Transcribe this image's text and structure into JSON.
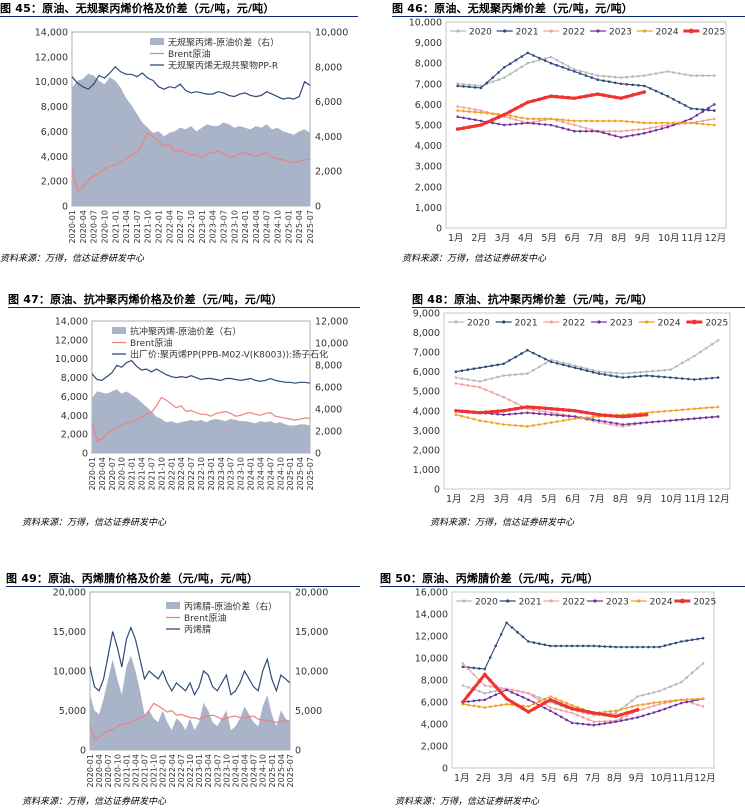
{
  "source_label": "资料来源：万得，信达证券研发中心",
  "panels": [
    {
      "id": "p45",
      "title": "图 45：原油、无规聚丙烯价格及价差（元/吨，元/吨）"
    },
    {
      "id": "p46",
      "title": "图 46：原油、无规聚丙烯价差（元/吨，元/吨）"
    },
    {
      "id": "p47",
      "title": "图 47：原油、抗冲聚丙烯价格及价差（元/吨，元/吨）"
    },
    {
      "id": "p48",
      "title": "图 48：原油、抗冲聚丙烯价差（元/吨，元/吨）"
    },
    {
      "id": "p49",
      "title": "图 49：原油、丙烯腈价格及价差（元/吨，元/吨）"
    },
    {
      "id": "p50",
      "title": "图 50：原油、丙烯腈价差（元/吨，元/吨）"
    }
  ],
  "colors": {
    "spread": "#a9b4c8",
    "brent": "#f08080",
    "product": "#2f4a7a",
    "title_rule": "#0b2a6b"
  },
  "chart_data": [
    {
      "id": "c45",
      "type": "area",
      "x_ticks": [
        "2020-01",
        "2020-04",
        "2020-07",
        "2020-10",
        "2021-01",
        "2021-04",
        "2021-07",
        "2021-10",
        "2022-01",
        "2022-04",
        "2022-07",
        "2022-10",
        "2023-01",
        "2023-04",
        "2023-07",
        "2023-10",
        "2024-01",
        "2024-04",
        "2024-07",
        "2024-10",
        "2025-01",
        "2025-04",
        "2025-07"
      ],
      "ylim_left": [
        0,
        14000
      ],
      "yticks_left": [
        "0",
        "2,000",
        "4,000",
        "6,000",
        "8,000",
        "10,000",
        "12,000",
        "14,000"
      ],
      "ylim_right": [
        0,
        10000
      ],
      "yticks_right": [
        "0",
        "2,000",
        "4,000",
        "6,000",
        "8,000",
        "10,000"
      ],
      "legend": [
        "无规聚丙烯-原油价差（右）",
        "Brent原油",
        "无规聚丙烯无规共聚物PP-R"
      ],
      "spread_right": [
        6800,
        7200,
        7300,
        7600,
        7500,
        7200,
        7000,
        7400,
        7200,
        6800,
        6200,
        5800,
        5300,
        4800,
        4500,
        4200,
        4300,
        4000,
        4200,
        4300,
        4500,
        4400,
        4600,
        4300,
        4500,
        4700,
        4600,
        4600,
        4800,
        4700,
        4500,
        4600,
        4500,
        4400,
        4600,
        4500,
        4700,
        4400,
        4500,
        4300,
        4200,
        4100,
        4300,
        4400,
        4200
      ],
      "brent_left": [
        3100,
        1200,
        1500,
        2100,
        2400,
        2600,
        3000,
        3200,
        3300,
        3500,
        3800,
        4100,
        4300,
        5000,
        5900,
        5600,
        5200,
        4800,
        5000,
        4400,
        4500,
        4300,
        4100,
        4100,
        3900,
        4200,
        4300,
        4400,
        4200,
        3900,
        4000,
        4200,
        4300,
        4100,
        4000,
        4200,
        4300,
        3900,
        3800,
        3700,
        3600,
        3500,
        3600,
        3700,
        3800
      ],
      "product_left": [
        10400,
        9900,
        9600,
        9400,
        9800,
        10500,
        10300,
        10700,
        11200,
        10800,
        10600,
        10600,
        10400,
        10700,
        10300,
        10100,
        9600,
        9400,
        9600,
        9500,
        9800,
        9300,
        9100,
        9200,
        9100,
        9000,
        9000,
        9200,
        9100,
        8900,
        8800,
        9000,
        9100,
        8900,
        8800,
        8900,
        9200,
        9000,
        8800,
        8600,
        8700,
        8600,
        8800,
        10000,
        9700
      ]
    },
    {
      "id": "c46",
      "type": "line",
      "categories": [
        "1月",
        "2月",
        "3月",
        "4月",
        "5月",
        "6月",
        "7月",
        "8月",
        "9月",
        "10月",
        "11月",
        "12月"
      ],
      "ylim": [
        0,
        10000
      ],
      "yticks": [
        "0",
        "1,000",
        "2,000",
        "3,000",
        "4,000",
        "5,000",
        "6,000",
        "7,000",
        "8,000",
        "9,000",
        "10,000"
      ],
      "series": [
        {
          "name": "2020",
          "color": "#b8b8b8",
          "values": [
            7000,
            6900,
            7300,
            8000,
            8300,
            7700,
            7400,
            7300,
            7400,
            7600,
            7400,
            7400
          ]
        },
        {
          "name": "2021",
          "color": "#2f4a7a",
          "values": [
            6900,
            6800,
            7800,
            8500,
            8000,
            7600,
            7200,
            7000,
            6900,
            6400,
            5800,
            5700
          ]
        },
        {
          "name": "2022",
          "color": "#f4a0a0",
          "values": [
            5900,
            5700,
            5400,
            5100,
            5300,
            5000,
            4700,
            4700,
            4800,
            5000,
            5100,
            5300
          ]
        },
        {
          "name": "2023",
          "color": "#7030a0",
          "values": [
            5400,
            5200,
            5000,
            5100,
            5000,
            4700,
            4700,
            4400,
            4600,
            4900,
            5300,
            6000
          ]
        },
        {
          "name": "2024",
          "color": "#f0a020",
          "values": [
            5700,
            5600,
            5500,
            5300,
            5300,
            5200,
            5200,
            5200,
            5100,
            5100,
            5100,
            5000
          ]
        },
        {
          "name": "2025",
          "color": "#ee3333",
          "values": [
            4800,
            5000,
            5500,
            6100,
            6400,
            6300,
            6500,
            6300,
            6600,
            null,
            null,
            null
          ]
        }
      ]
    },
    {
      "id": "c47",
      "type": "area",
      "x_ticks": [
        "2020-01",
        "2020-04",
        "2020-07",
        "2020-10",
        "2021-01",
        "2021-04",
        "2021-07",
        "2021-10",
        "2022-01",
        "2022-04",
        "2022-07",
        "2022-10",
        "2023-01",
        "2023-04",
        "2023-07",
        "2023-10",
        "2024-01",
        "2024-04",
        "2024-07",
        "2024-10",
        "2025-01",
        "2025-04",
        "2025-07"
      ],
      "ylim_left": [
        0,
        14000
      ],
      "yticks_left": [
        "0",
        "2,000",
        "4,000",
        "6,000",
        "8,000",
        "10,000",
        "12,000",
        "14,000"
      ],
      "ylim_right": [
        0,
        12000
      ],
      "yticks_right": [
        "0",
        "2,000",
        "4,000",
        "6,000",
        "8,000",
        "10,000",
        "12,000"
      ],
      "legend": [
        "抗冲聚丙烯-原油价差（右）",
        "Brent原油",
        "出厂价:聚丙烯PP(PPB-M02-V(K8003)):扬子石化"
      ],
      "spread_right": [
        5000,
        5600,
        5500,
        5400,
        5600,
        5800,
        5400,
        5600,
        5300,
        5000,
        4600,
        4200,
        3800,
        3300,
        3100,
        2800,
        2900,
        2700,
        2800,
        2900,
        3000,
        2900,
        3000,
        2800,
        3000,
        3100,
        3000,
        2900,
        3100,
        3000,
        2900,
        2900,
        2800,
        2700,
        2900,
        2800,
        2900,
        2700,
        2800,
        2600,
        2500,
        2500,
        2600,
        2600,
        2500
      ],
      "brent_left": [
        3200,
        1300,
        1500,
        2100,
        2400,
        2600,
        3000,
        3200,
        3300,
        3500,
        3800,
        4100,
        4300,
        5000,
        5900,
        5600,
        5200,
        4800,
        5000,
        4400,
        4500,
        4300,
        4100,
        4100,
        3900,
        4200,
        4300,
        4400,
        4200,
        3900,
        4000,
        4200,
        4300,
        4100,
        4000,
        4200,
        4300,
        3900,
        3800,
        3700,
        3600,
        3500,
        3600,
        3700,
        3700
      ],
      "product_left": [
        8400,
        7800,
        7700,
        8100,
        8500,
        9300,
        9100,
        9600,
        9800,
        9200,
        8800,
        8900,
        8600,
        8900,
        8600,
        8300,
        8100,
        8000,
        8100,
        8000,
        8200,
        8000,
        7800,
        7900,
        7900,
        7800,
        7700,
        7900,
        7900,
        7800,
        7700,
        7800,
        7900,
        7700,
        7600,
        7700,
        7900,
        7700,
        7600,
        7500,
        7500,
        7400,
        7500,
        7500,
        7400
      ]
    },
    {
      "id": "c48",
      "type": "line",
      "categories": [
        "1月",
        "2月",
        "3月",
        "4月",
        "5月",
        "6月",
        "7月",
        "8月",
        "9月",
        "10月",
        "11月",
        "12月"
      ],
      "ylim": [
        0,
        9000
      ],
      "yticks": [
        "0",
        "1,000",
        "2,000",
        "3,000",
        "4,000",
        "5,000",
        "6,000",
        "7,000",
        "8,000",
        "9,000"
      ],
      "series": [
        {
          "name": "2020",
          "color": "#b8b8b8",
          "values": [
            5700,
            5500,
            5800,
            5900,
            6600,
            6300,
            6000,
            5900,
            6000,
            6100,
            6800,
            7600
          ]
        },
        {
          "name": "2021",
          "color": "#2f4a7a",
          "values": [
            6000,
            6200,
            6400,
            7100,
            6500,
            6200,
            5900,
            5700,
            5800,
            5700,
            5600,
            5700
          ]
        },
        {
          "name": "2022",
          "color": "#f4a0a0",
          "values": [
            5400,
            5200,
            4700,
            4100,
            3900,
            3700,
            3400,
            3200,
            3400,
            3500,
            3600,
            3700
          ]
        },
        {
          "name": "2023",
          "color": "#7030a0",
          "values": [
            4000,
            3900,
            3800,
            3900,
            3800,
            3700,
            3500,
            3300,
            3400,
            3500,
            3600,
            3700
          ]
        },
        {
          "name": "2024",
          "color": "#f0a020",
          "values": [
            3800,
            3500,
            3300,
            3200,
            3400,
            3600,
            3700,
            3800,
            3900,
            4000,
            4100,
            4200
          ]
        },
        {
          "name": "2025",
          "color": "#ee3333",
          "values": [
            4000,
            3900,
            4000,
            4200,
            4100,
            4000,
            3800,
            3700,
            3800,
            null,
            null,
            null
          ]
        }
      ]
    },
    {
      "id": "c49",
      "type": "area",
      "x_ticks": [
        "2020-01",
        "2020-04",
        "2020-07",
        "2020-10",
        "2021-01",
        "2021-04",
        "2021-07",
        "2021-10",
        "2022-01",
        "2022-04",
        "2022-07",
        "2022-10",
        "2023-01",
        "2023-04",
        "2023-07",
        "2023-10",
        "2024-01",
        "2024-04",
        "2024-07",
        "2024-10",
        "2025-01",
        "2025-04",
        "2025-07"
      ],
      "ylim_left": [
        0,
        20000
      ],
      "yticks_left": [
        "0",
        "5,000",
        "10,000",
        "15,000",
        "20,000"
      ],
      "ylim_right": [
        0,
        20000
      ],
      "yticks_right": [
        "0",
        "5,000",
        "10,000",
        "15,000",
        "20,000"
      ],
      "legend": [
        "丙烯腈-原油价差（右）",
        "Brent原油",
        "丙烯腈"
      ],
      "spread_right": [
        7000,
        5000,
        4500,
        6500,
        9000,
        11500,
        9000,
        7000,
        10500,
        12000,
        10000,
        7500,
        4500,
        5000,
        4000,
        3500,
        5000,
        3500,
        2500,
        4000,
        3500,
        2500,
        4000,
        2500,
        3500,
        6000,
        5000,
        3500,
        3000,
        4000,
        5000,
        2500,
        3000,
        4000,
        5500,
        4500,
        3500,
        3000,
        5500,
        7000,
        4500,
        3000,
        5000,
        4000,
        3500
      ],
      "brent_left": [
        3200,
        1300,
        1600,
        2100,
        2400,
        2600,
        3000,
        3200,
        3300,
        3500,
        3800,
        4100,
        4300,
        5000,
        5900,
        5600,
        5200,
        4800,
        5000,
        4400,
        4500,
        4300,
        4100,
        4100,
        3900,
        4200,
        4300,
        4400,
        4200,
        3900,
        4000,
        4200,
        4300,
        4100,
        4000,
        4200,
        4300,
        3900,
        3800,
        3700,
        3600,
        3500,
        3600,
        3700,
        3700
      ],
      "product_left": [
        10500,
        8000,
        7500,
        9000,
        12000,
        15000,
        13000,
        10500,
        14000,
        15500,
        14000,
        11500,
        9000,
        10000,
        9500,
        9000,
        10000,
        8500,
        7500,
        8500,
        8000,
        7500,
        8500,
        7000,
        8000,
        10000,
        9500,
        8000,
        7500,
        8500,
        9500,
        7000,
        7500,
        8500,
        10000,
        9000,
        8000,
        7500,
        10000,
        11500,
        9000,
        7500,
        9500,
        9000,
        8500
      ]
    },
    {
      "id": "c50",
      "type": "line",
      "categories": [
        "1月",
        "2月",
        "3月",
        "4月",
        "5月",
        "6月",
        "7月",
        "8月",
        "9月",
        "10月",
        "11月",
        "12月"
      ],
      "ylim": [
        0,
        16000
      ],
      "yticks": [
        "0",
        "2,000",
        "4,000",
        "6,000",
        "8,000",
        "10,000",
        "12,000",
        "14,000",
        "16,000"
      ],
      "series": [
        {
          "name": "2020",
          "color": "#b8b8b8",
          "values": [
            7500,
            6800,
            7200,
            6800,
            6000,
            5300,
            4800,
            5000,
            6500,
            7000,
            7800,
            9500
          ]
        },
        {
          "name": "2021",
          "color": "#2f4a7a",
          "values": [
            9200,
            9000,
            13200,
            11500,
            11100,
            11100,
            11100,
            11000,
            11000,
            11000,
            11500,
            11800
          ]
        },
        {
          "name": "2022",
          "color": "#f4a0a0",
          "values": [
            9500,
            7500,
            7200,
            6800,
            5500,
            5000,
            4200,
            4300,
            5200,
            5800,
            6200,
            5600
          ]
        },
        {
          "name": "2023",
          "color": "#7030a0",
          "values": [
            6000,
            6200,
            7100,
            6200,
            5200,
            4100,
            3900,
            4200,
            4600,
            5200,
            5900,
            6300
          ]
        },
        {
          "name": "2024",
          "color": "#f0a020",
          "values": [
            5800,
            5500,
            5800,
            5600,
            6500,
            5700,
            5000,
            5200,
            5700,
            6000,
            6200,
            6300
          ]
        },
        {
          "name": "2025",
          "color": "#ee3333",
          "values": [
            6000,
            8500,
            6300,
            5100,
            6200,
            5400,
            5000,
            4700,
            5300,
            null,
            null,
            null
          ]
        }
      ]
    }
  ]
}
